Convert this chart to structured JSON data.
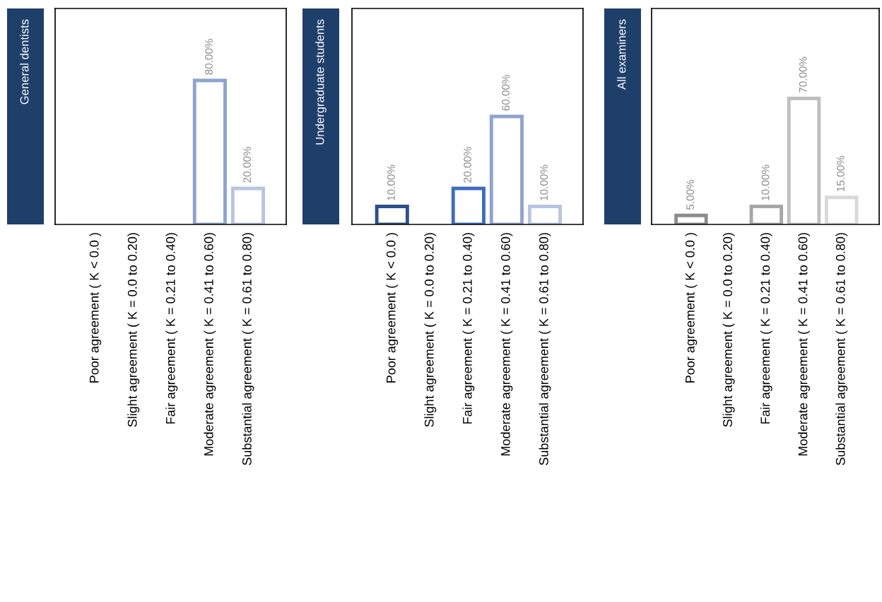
{
  "chart_data": [
    {
      "type": "bar",
      "title": "General dentists",
      "categories": [
        "Poor agreement ( K < 0.0 )",
        "Slight agreement ( K = 0.0 to 0.20)",
        "Fair agreement ( K = 0.21 to 0.40)",
        "Moderate agreement ( K = 0.41 to 0.60)",
        "Substantial agreement ( K = 0.61 to 0.80)"
      ],
      "values": [
        0,
        0,
        0,
        80,
        20
      ],
      "colors": [
        "#2e4f8f",
        "#3d6cc0",
        "#3d6cc0",
        "#8fa3d0",
        "#b8c4e2"
      ],
      "value_labels": [
        null,
        null,
        null,
        "80.00%",
        "20.00%"
      ],
      "ylim": [
        0,
        120
      ],
      "tick_labels": "x"
    },
    {
      "type": "bar",
      "title": "Undergraduate students",
      "categories": [
        "Poor agreement ( K < 0.0 )",
        "Slight agreement ( K = 0.0 to 0.20)",
        "Fair agreement ( K = 0.21 to 0.40)",
        "Moderate agreement ( K = 0.41 to 0.60)",
        "Substantial agreement ( K = 0.61 to 0.80)"
      ],
      "values": [
        10,
        0,
        20,
        60,
        10
      ],
      "colors": [
        "#2e4f8f",
        "#3d6cc0",
        "#3d6cc0",
        "#8fa3d0",
        "#b8c4e2"
      ],
      "value_labels": [
        "10.00%",
        null,
        "20.00%",
        "60.00%",
        "10.00%"
      ],
      "ylim": [
        0,
        120
      ],
      "tick_labels": "x"
    },
    {
      "type": "bar",
      "title": "All examiners",
      "categories": [
        "Poor agreement ( K < 0.0 )",
        "Slight agreement ( K = 0.0 to 0.20)",
        "Fair agreement ( K = 0.21 to 0.40)",
        "Moderate agreement ( K = 0.41 to 0.60)",
        "Substantial agreement ( K = 0.61 to 0.80)"
      ],
      "values": [
        5,
        0,
        10,
        70,
        15
      ],
      "colors": [
        "#8c8c8c",
        "#999999",
        "#a6a6a6",
        "#bfbfbf",
        "#d9d9d9"
      ],
      "value_labels": [
        "5.00%",
        null,
        "10.00%",
        "70.00%",
        "15.00%"
      ],
      "ylim": [
        0,
        120
      ],
      "tick_labels": "x"
    }
  ]
}
